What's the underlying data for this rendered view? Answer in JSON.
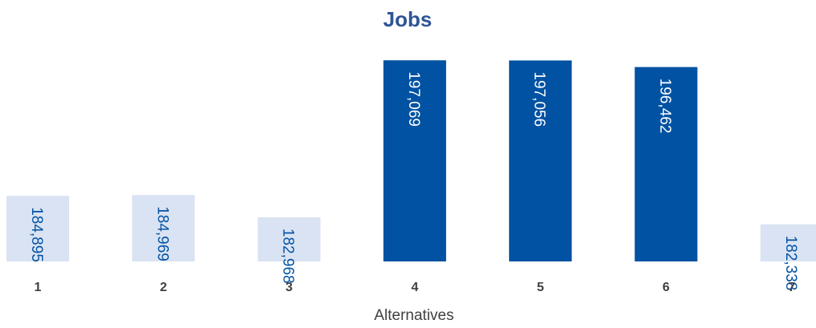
{
  "chart_data": {
    "type": "bar",
    "title": "Jobs",
    "xlabel": "Alternatives",
    "ylabel": "",
    "categories": [
      "1",
      "2",
      "3",
      "4",
      "5",
      "6",
      "7"
    ],
    "values": [
      184895,
      184969,
      182968,
      197069,
      197056,
      196462,
      182338
    ],
    "data_labels": [
      "184,895",
      "184,969",
      "182,968",
      "197,069",
      "197,056",
      "196,462",
      "182,338"
    ],
    "highlighted": [
      false,
      false,
      false,
      true,
      true,
      true,
      false
    ],
    "ylim": [
      179000,
      197300
    ],
    "grid": false,
    "legend": "none"
  },
  "colors": {
    "title": "#2F5597",
    "bar_light": "#DAE3F3",
    "bar_dark": "#0252A3",
    "label_on_light": "#0252A3",
    "label_on_dark": "#FFFFFF",
    "tick_text": "#404040"
  }
}
